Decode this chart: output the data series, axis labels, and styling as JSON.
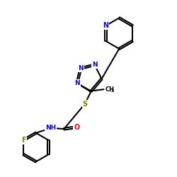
{
  "bg_color": "#ffffff",
  "atom_colors": {
    "N": "#0000ff",
    "O": "#ff0000",
    "S": "#808000",
    "F": "#808000",
    "C": "#000000"
  },
  "bond_color": "#000000",
  "bond_width": 1.5
}
